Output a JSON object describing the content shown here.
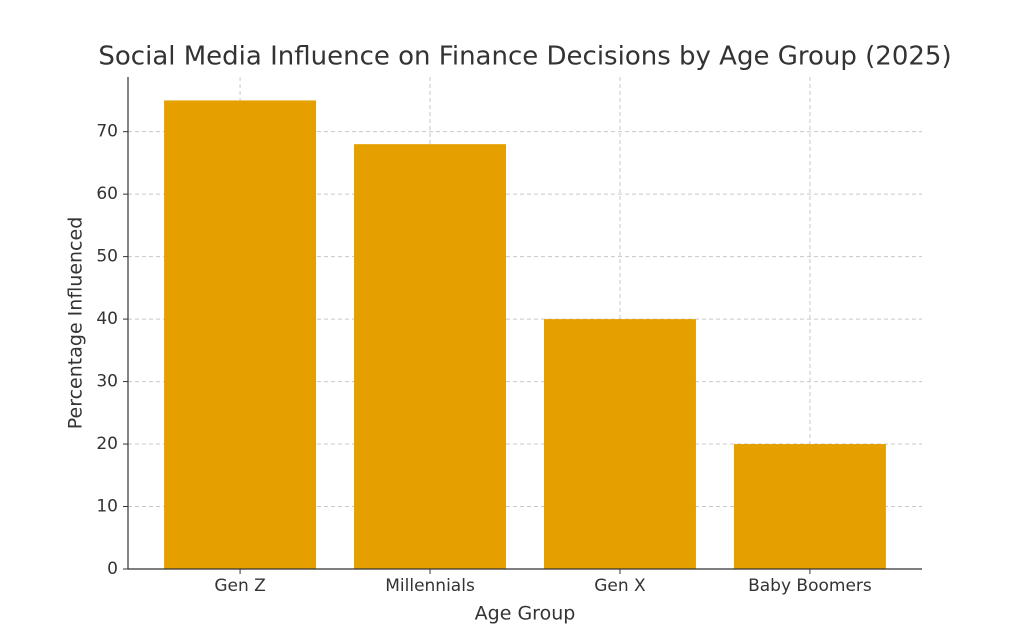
{
  "chart_data": {
    "type": "bar",
    "title": "Social Media Influence on Finance Decisions by Age Group (2025)",
    "x_label": "Age Group",
    "y_label": "Percentage Influenced",
    "categories": [
      "Gen Z",
      "Millennials",
      "Gen X",
      "Baby Boomers"
    ],
    "values": [
      75,
      68,
      40,
      20
    ],
    "color": "#e5a000",
    "ylim": [
      0,
      78.75
    ],
    "yticks": [
      0,
      10,
      20,
      30,
      40,
      50,
      60,
      70
    ],
    "grid": true
  }
}
